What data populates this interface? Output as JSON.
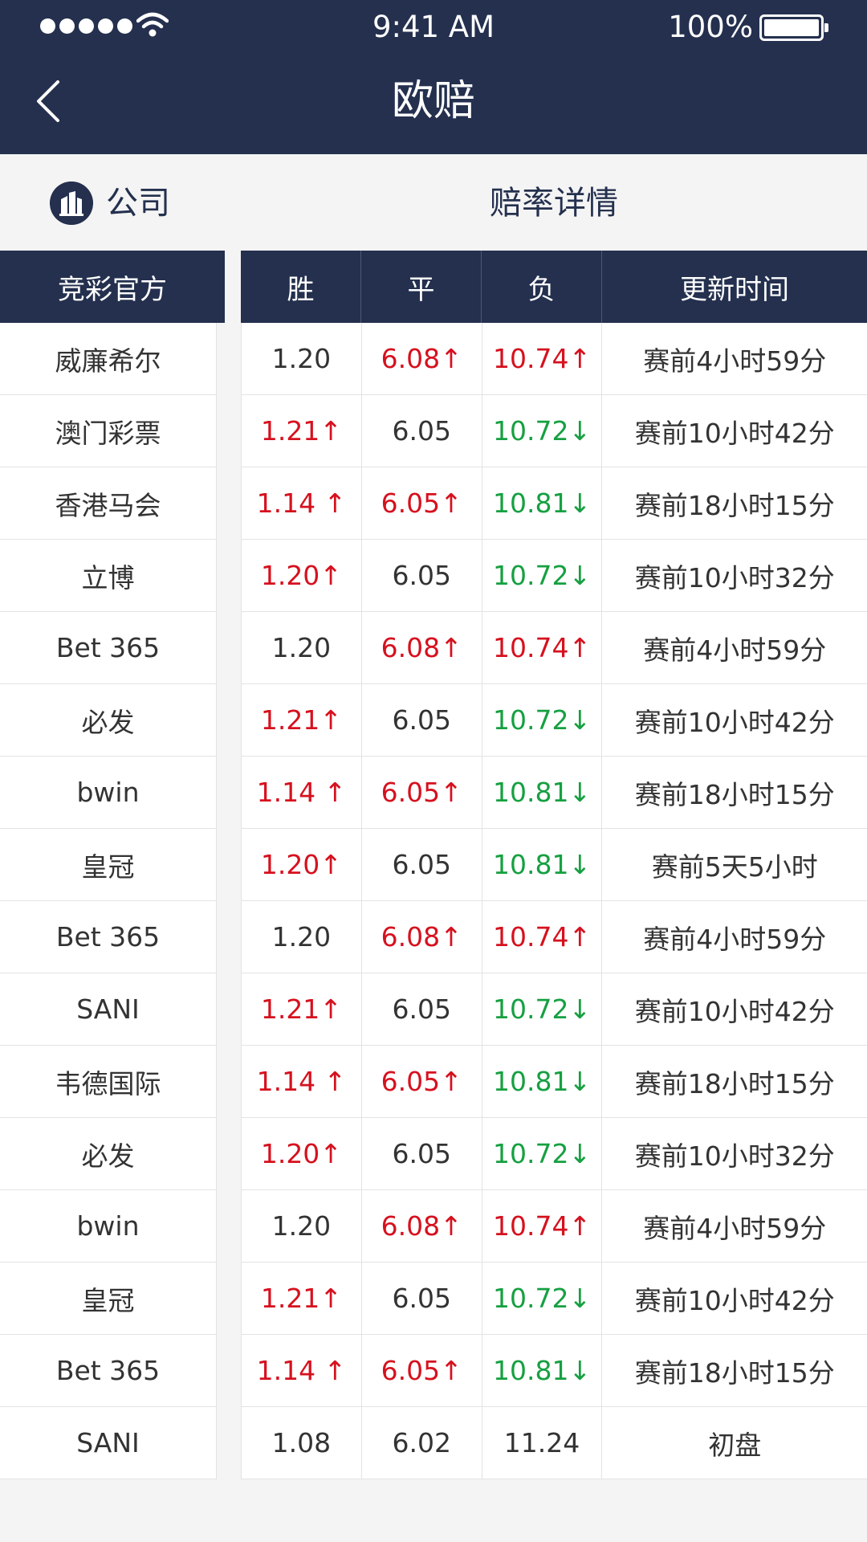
{
  "status": {
    "time": "9:41 AM",
    "battery": "100%"
  },
  "header": {
    "title": "欧赔"
  },
  "subhead": {
    "company": "公司",
    "detail": "赔率详情"
  },
  "columns": {
    "company": "竞彩官方",
    "win": "胜",
    "draw": "平",
    "loss": "负",
    "time": "更新时间"
  },
  "colors": {
    "nav": "#24304e",
    "up": "#d6111e",
    "down": "#16a041",
    "text": "#333333"
  },
  "rows": [
    {
      "company": "威廉希尔",
      "win": "1.20",
      "win_dir": "none",
      "draw": "6.08↑",
      "draw_dir": "up",
      "loss": "10.74↑",
      "loss_dir": "up",
      "time": "赛前4小时59分"
    },
    {
      "company": "澳门彩票",
      "win": "1.21↑",
      "win_dir": "up",
      "draw": "6.05",
      "draw_dir": "none",
      "loss": "10.72↓",
      "loss_dir": "down",
      "time": "赛前10小时42分"
    },
    {
      "company": "香港马会",
      "win": "1.14 ↑",
      "win_dir": "up",
      "draw": "6.05↑",
      "draw_dir": "up",
      "loss": "10.81↓",
      "loss_dir": "down",
      "time": "赛前18小时15分"
    },
    {
      "company": "立博",
      "win": "1.20↑",
      "win_dir": "up",
      "draw": "6.05",
      "draw_dir": "none",
      "loss": "10.72↓",
      "loss_dir": "down",
      "time": "赛前10小时32分"
    },
    {
      "company": "Bet 365",
      "win": "1.20",
      "win_dir": "none",
      "draw": "6.08↑",
      "draw_dir": "up",
      "loss": "10.74↑",
      "loss_dir": "up",
      "time": "赛前4小时59分"
    },
    {
      "company": "必发",
      "win": "1.21↑",
      "win_dir": "up",
      "draw": "6.05",
      "draw_dir": "none",
      "loss": "10.72↓",
      "loss_dir": "down",
      "time": "赛前10小时42分"
    },
    {
      "company": "bwin",
      "win": "1.14 ↑",
      "win_dir": "up",
      "draw": "6.05↑",
      "draw_dir": "up",
      "loss": "10.81↓",
      "loss_dir": "down",
      "time": "赛前18小时15分"
    },
    {
      "company": "皇冠",
      "win": "1.20↑",
      "win_dir": "up",
      "draw": "6.05",
      "draw_dir": "none",
      "loss": "10.81↓",
      "loss_dir": "down",
      "time": "赛前5天5小时"
    },
    {
      "company": "Bet 365",
      "win": "1.20",
      "win_dir": "none",
      "draw": "6.08↑",
      "draw_dir": "up",
      "loss": "10.74↑",
      "loss_dir": "up",
      "time": "赛前4小时59分"
    },
    {
      "company": "SANI",
      "win": "1.21↑",
      "win_dir": "up",
      "draw": "6.05",
      "draw_dir": "none",
      "loss": "10.72↓",
      "loss_dir": "down",
      "time": "赛前10小时42分"
    },
    {
      "company": "韦德国际",
      "win": "1.14 ↑",
      "win_dir": "up",
      "draw": "6.05↑",
      "draw_dir": "up",
      "loss": "10.81↓",
      "loss_dir": "down",
      "time": "赛前18小时15分"
    },
    {
      "company": "必发",
      "win": "1.20↑",
      "win_dir": "up",
      "draw": "6.05",
      "draw_dir": "none",
      "loss": "10.72↓",
      "loss_dir": "down",
      "time": "赛前10小时32分"
    },
    {
      "company": "bwin",
      "win": "1.20",
      "win_dir": "none",
      "draw": "6.08↑",
      "draw_dir": "up",
      "loss": "10.74↑",
      "loss_dir": "up",
      "time": "赛前4小时59分"
    },
    {
      "company": "皇冠",
      "win": "1.21↑",
      "win_dir": "up",
      "draw": "6.05",
      "draw_dir": "none",
      "loss": "10.72↓",
      "loss_dir": "down",
      "time": "赛前10小时42分"
    },
    {
      "company": "Bet 365",
      "win": "1.14 ↑",
      "win_dir": "up",
      "draw": "6.05↑",
      "draw_dir": "up",
      "loss": "10.81↓",
      "loss_dir": "down",
      "time": "赛前18小时15分"
    },
    {
      "company": "SANI",
      "win": "1.08",
      "win_dir": "none",
      "draw": "6.02",
      "draw_dir": "none",
      "loss": "11.24",
      "loss_dir": "none",
      "time": "初盘"
    }
  ]
}
